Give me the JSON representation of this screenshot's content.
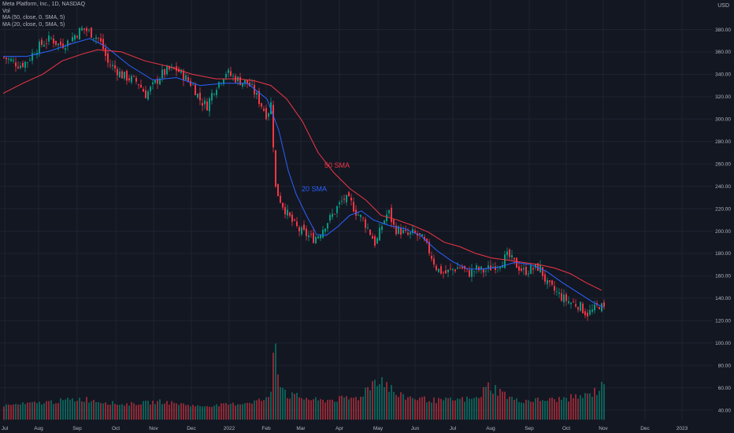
{
  "legend": {
    "title": "Meta Platform, Inc., 1D, NASDAQ",
    "vol": "Vol",
    "ma50": "MA (50, close, 0, SMA, 5)",
    "ma20": "MA (20, close, 0, SMA, 5)"
  },
  "currency": "USD",
  "chart_data": {
    "type": "line",
    "instrument": "Meta Platform, Inc., 1D, NASDAQ",
    "price_axis": {
      "ticks": [
        "380.00",
        "360.00",
        "340.00",
        "320.00",
        "300.00",
        "280.00",
        "260.00",
        "240.00",
        "220.00",
        "200.00",
        "180.00",
        "160.00",
        "140.00",
        "120.00",
        "100.00",
        "80.00",
        "60.00",
        "40.00"
      ],
      "ylim": [
        32,
        398
      ]
    },
    "time_axis": {
      "ticks": [
        "Jul",
        "Aug",
        "Sep",
        "Oct",
        "Nov",
        "Dec",
        "2022",
        "Feb",
        "Mar",
        "Apr",
        "May",
        "Jun",
        "Jul",
        "Aug",
        "Sep",
        "Oct",
        "Nov",
        "Dec",
        "2023"
      ]
    },
    "annotations": [
      {
        "text": "50 SMA",
        "color": "#f23645"
      },
      {
        "text": "20 SMA",
        "color": "#2962ff"
      }
    ],
    "series": [
      {
        "name": "close",
        "type": "candlestick",
        "up_color": "#089981",
        "down_color": "#f23645",
        "values": [
          [
            0,
            355
          ],
          [
            10,
            352
          ],
          [
            20,
            348
          ],
          [
            30,
            352
          ],
          [
            40,
            362
          ],
          [
            50,
            368
          ],
          [
            60,
            372
          ],
          [
            70,
            366
          ],
          [
            80,
            368
          ],
          [
            90,
            375
          ],
          [
            100,
            381
          ],
          [
            110,
            377
          ],
          [
            120,
            372
          ],
          [
            125,
            365
          ],
          [
            132,
            350
          ],
          [
            140,
            346
          ],
          [
            150,
            339
          ],
          [
            160,
            336
          ],
          [
            170,
            333
          ],
          [
            180,
            322
          ],
          [
            190,
            330
          ],
          [
            200,
            340
          ],
          [
            210,
            344
          ],
          [
            220,
            344
          ],
          [
            230,
            337
          ],
          [
            240,
            330
          ],
          [
            250,
            316
          ],
          [
            258,
            312
          ],
          [
            266,
            326
          ],
          [
            274,
            334
          ],
          [
            282,
            342
          ],
          [
            290,
            338
          ],
          [
            300,
            334
          ],
          [
            310,
            332
          ],
          [
            318,
            324
          ],
          [
            326,
            314
          ],
          [
            334,
            303
          ],
          [
            340,
            316
          ],
          [
            344,
            240
          ],
          [
            352,
            226
          ],
          [
            360,
            215
          ],
          [
            368,
            206
          ],
          [
            376,
            200
          ],
          [
            384,
            197
          ],
          [
            392,
            193
          ],
          [
            400,
            197
          ],
          [
            408,
            206
          ],
          [
            416,
            213
          ],
          [
            424,
            222
          ],
          [
            432,
            229
          ],
          [
            440,
            226
          ],
          [
            448,
            216
          ],
          [
            456,
            210
          ],
          [
            464,
            200
          ],
          [
            472,
            188
          ],
          [
            480,
            205
          ],
          [
            488,
            218
          ],
          [
            496,
            202
          ],
          [
            504,
            200
          ],
          [
            512,
            196
          ],
          [
            520,
            198
          ],
          [
            530,
            194
          ],
          [
            540,
            182
          ],
          [
            550,
            166
          ],
          [
            560,
            162
          ],
          [
            570,
            166
          ],
          [
            580,
            168
          ],
          [
            590,
            162
          ],
          [
            600,
            166
          ],
          [
            610,
            164
          ],
          [
            620,
            168
          ],
          [
            630,
            172
          ],
          [
            640,
            178
          ],
          [
            650,
            170
          ],
          [
            660,
            164
          ],
          [
            670,
            166
          ],
          [
            680,
            168
          ],
          [
            690,
            152
          ],
          [
            700,
            146
          ],
          [
            710,
            140
          ],
          [
            720,
            136
          ],
          [
            730,
            134
          ],
          [
            740,
            126
          ],
          [
            748,
            129
          ],
          [
            756,
            134
          ],
          [
            762,
            130
          ]
        ]
      },
      {
        "name": "MA 20",
        "color": "#2962ff",
        "values": [
          [
            0,
            356
          ],
          [
            30,
            356
          ],
          [
            60,
            361
          ],
          [
            90,
            368
          ],
          [
            110,
            372
          ],
          [
            130,
            365
          ],
          [
            160,
            348
          ],
          [
            190,
            335
          ],
          [
            220,
            337
          ],
          [
            250,
            330
          ],
          [
            280,
            332
          ],
          [
            310,
            332
          ],
          [
            335,
            318
          ],
          [
            350,
            290
          ],
          [
            362,
            254
          ],
          [
            372,
            233
          ],
          [
            385,
            214
          ],
          [
            398,
            197
          ],
          [
            410,
            196
          ],
          [
            425,
            204
          ],
          [
            440,
            214
          ],
          [
            455,
            218
          ],
          [
            470,
            210
          ],
          [
            490,
            205
          ],
          [
            510,
            202
          ],
          [
            530,
            196
          ],
          [
            550,
            183
          ],
          [
            570,
            173
          ],
          [
            590,
            166
          ],
          [
            610,
            166
          ],
          [
            630,
            168
          ],
          [
            650,
            172
          ],
          [
            670,
            170
          ],
          [
            690,
            164
          ],
          [
            710,
            154
          ],
          [
            730,
            145
          ],
          [
            750,
            136
          ],
          [
            762,
            132
          ]
        ]
      },
      {
        "name": "MA 50",
        "color": "#f23645",
        "values": [
          [
            0,
            323
          ],
          [
            25,
            332
          ],
          [
            50,
            340
          ],
          [
            75,
            352
          ],
          [
            100,
            358
          ],
          [
            120,
            362
          ],
          [
            150,
            360
          ],
          [
            180,
            352
          ],
          [
            210,
            347
          ],
          [
            240,
            340
          ],
          [
            270,
            336
          ],
          [
            300,
            336
          ],
          [
            320,
            334
          ],
          [
            340,
            330
          ],
          [
            360,
            318
          ],
          [
            380,
            298
          ],
          [
            400,
            270
          ],
          [
            420,
            252
          ],
          [
            440,
            238
          ],
          [
            460,
            228
          ],
          [
            480,
            214
          ],
          [
            500,
            210
          ],
          [
            520,
            205
          ],
          [
            540,
            199
          ],
          [
            560,
            190
          ],
          [
            580,
            186
          ],
          [
            600,
            180
          ],
          [
            620,
            176
          ],
          [
            640,
            174
          ],
          [
            660,
            172
          ],
          [
            680,
            170
          ],
          [
            700,
            167
          ],
          [
            720,
            162
          ],
          [
            740,
            154
          ],
          [
            760,
            147
          ]
        ]
      },
      {
        "name": "Vol",
        "type": "volume",
        "values": [
          [
            0,
            45
          ],
          [
            50,
            48
          ],
          [
            100,
            52
          ],
          [
            150,
            46
          ],
          [
            200,
            49
          ],
          [
            250,
            44
          ],
          [
            300,
            47
          ],
          [
            338,
            52
          ],
          [
            344,
            125
          ],
          [
            350,
            72
          ],
          [
            360,
            56
          ],
          [
            400,
            50
          ],
          [
            450,
            53
          ],
          [
            476,
            76
          ],
          [
            500,
            55
          ],
          [
            550,
            50
          ],
          [
            600,
            52
          ],
          [
            616,
            66
          ],
          [
            650,
            50
          ],
          [
            700,
            51
          ],
          [
            740,
            55
          ],
          [
            756,
            62
          ],
          [
            760,
            74
          ]
        ]
      }
    ]
  }
}
